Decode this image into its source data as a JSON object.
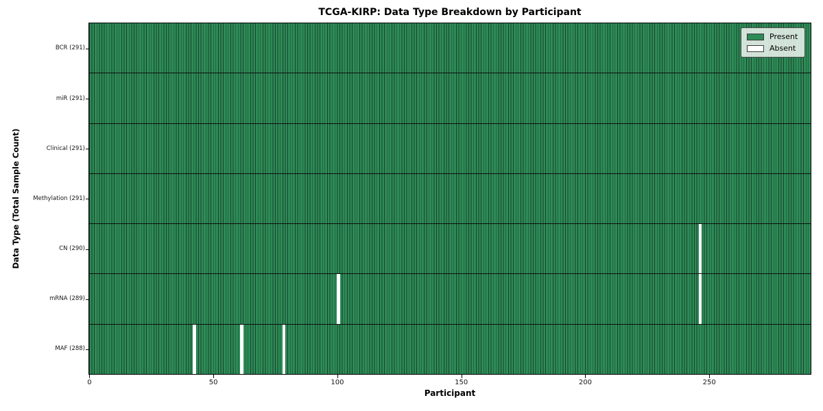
{
  "chart_data": {
    "type": "heatmap",
    "title": "TCGA-KIRP: Data Type Breakdown by Participant",
    "xlabel": "Participant",
    "ylabel": "Data Type (Total Sample Count)",
    "xlim": [
      0,
      291
    ],
    "n_participants": 291,
    "x_ticks": [
      0,
      50,
      100,
      150,
      200,
      250
    ],
    "rows": [
      {
        "label": "BCR (291)",
        "data_type": "BCR",
        "present_count": 291,
        "absent_participants": []
      },
      {
        "label": "miR (291)",
        "data_type": "miR",
        "present_count": 291,
        "absent_participants": []
      },
      {
        "label": "Clinical (291)",
        "data_type": "Clinical",
        "present_count": 291,
        "absent_participants": []
      },
      {
        "label": "Methylation (291)",
        "data_type": "Methylation",
        "present_count": 291,
        "absent_participants": []
      },
      {
        "label": "CN (290)",
        "data_type": "CN",
        "present_count": 290,
        "absent_participants": [
          246
        ]
      },
      {
        "label": "mRNA (289)",
        "data_type": "mRNA",
        "present_count": 289,
        "absent_participants": [
          100,
          246
        ]
      },
      {
        "label": "MAF (288)",
        "data_type": "MAF",
        "present_count": 288,
        "absent_participants": [
          42,
          61,
          78
        ]
      }
    ],
    "legend": [
      {
        "label": "Present",
        "color": "#2e8b57"
      },
      {
        "label": "Absent",
        "color": "#ffffff"
      }
    ],
    "colors": {
      "present": "#2e8b57",
      "absent": "#ffffff",
      "bar_edge": "#16422b",
      "row_separator": "#0d0d0d",
      "axis_border": "#000000",
      "text": "#000000"
    },
    "legend_position": "upper right",
    "grid": false
  }
}
